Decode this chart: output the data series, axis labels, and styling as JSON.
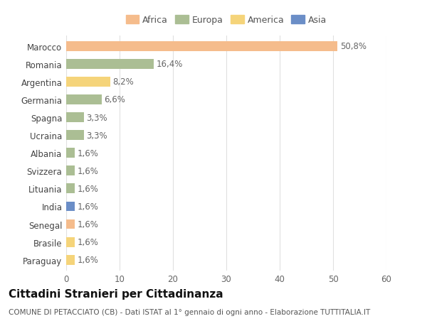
{
  "categories": [
    "Marocco",
    "Romania",
    "Argentina",
    "Germania",
    "Spagna",
    "Ucraina",
    "Albania",
    "Svizzera",
    "Lituania",
    "India",
    "Senegal",
    "Brasile",
    "Paraguay"
  ],
  "values": [
    50.8,
    16.4,
    8.2,
    6.6,
    3.3,
    3.3,
    1.6,
    1.6,
    1.6,
    1.6,
    1.6,
    1.6,
    1.6
  ],
  "labels": [
    "50,8%",
    "16,4%",
    "8,2%",
    "6,6%",
    "3,3%",
    "3,3%",
    "1,6%",
    "1,6%",
    "1,6%",
    "1,6%",
    "1,6%",
    "1,6%",
    "1,6%"
  ],
  "colors": [
    "#F5BC8C",
    "#ABBE94",
    "#F5D47A",
    "#ABBE94",
    "#ABBE94",
    "#ABBE94",
    "#ABBE94",
    "#ABBE94",
    "#ABBE94",
    "#6B8EC7",
    "#F5BC8C",
    "#F5D47A",
    "#F5D47A"
  ],
  "legend": [
    {
      "label": "Africa",
      "color": "#F5BC8C"
    },
    {
      "label": "Europa",
      "color": "#ABBE94"
    },
    {
      "label": "America",
      "color": "#F5D47A"
    },
    {
      "label": "Asia",
      "color": "#6B8EC7"
    }
  ],
  "xlim": [
    0,
    60
  ],
  "xticks": [
    0,
    10,
    20,
    30,
    40,
    50,
    60
  ],
  "title": "Cittadini Stranieri per Cittadinanza",
  "subtitle": "COMUNE DI PETACCIATO (CB) - Dati ISTAT al 1° gennaio di ogni anno - Elaborazione TUTTITALIA.IT",
  "background_color": "#ffffff",
  "grid_color": "#e0e0e0",
  "bar_height": 0.55,
  "label_fontsize": 8.5,
  "tick_fontsize": 8.5,
  "title_fontsize": 11,
  "subtitle_fontsize": 7.5
}
